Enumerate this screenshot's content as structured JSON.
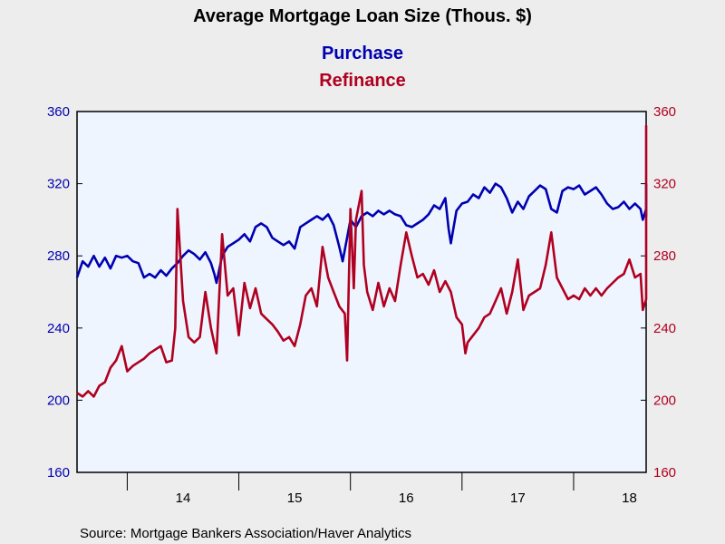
{
  "chart_data": {
    "type": "line",
    "title": "Average Mortgage Loan Size (Thous. $)",
    "source": "Source:  Mortgage Bankers Association/Haver Analytics",
    "y_left_range": [
      160,
      360
    ],
    "y_right_range": [
      160,
      360
    ],
    "y_ticks": [
      160,
      200,
      240,
      280,
      320,
      360
    ],
    "x_tick_labels": [
      "14",
      "15",
      "16",
      "17",
      "18"
    ],
    "x_range_years": [
      2013.55,
      2018.65
    ],
    "year_starts": [
      2014,
      2015,
      2016,
      2017,
      2018
    ],
    "grid": false,
    "legend_placement": "top-center",
    "colors": {
      "purchase": "#0000b0",
      "refinance": "#b00020",
      "plot_background": "#eef5ff",
      "page_background": "#ededed"
    },
    "series": [
      {
        "name": "Purchase",
        "axis": "left",
        "points": [
          [
            2013.55,
            268
          ],
          [
            2013.6,
            277
          ],
          [
            2013.65,
            274
          ],
          [
            2013.7,
            280
          ],
          [
            2013.75,
            274
          ],
          [
            2013.8,
            279
          ],
          [
            2013.85,
            273
          ],
          [
            2013.9,
            280
          ],
          [
            2013.95,
            279
          ],
          [
            2014.0,
            280
          ],
          [
            2014.05,
            277
          ],
          [
            2014.1,
            276
          ],
          [
            2014.15,
            268
          ],
          [
            2014.2,
            270
          ],
          [
            2014.25,
            268
          ],
          [
            2014.3,
            272
          ],
          [
            2014.35,
            269
          ],
          [
            2014.4,
            273
          ],
          [
            2014.45,
            276
          ],
          [
            2014.5,
            280
          ],
          [
            2014.55,
            283
          ],
          [
            2014.6,
            281
          ],
          [
            2014.65,
            278
          ],
          [
            2014.7,
            282
          ],
          [
            2014.75,
            276
          ],
          [
            2014.78,
            270
          ],
          [
            2014.8,
            265
          ],
          [
            2014.85,
            280
          ],
          [
            2014.9,
            285
          ],
          [
            2014.95,
            287
          ],
          [
            2015.0,
            289
          ],
          [
            2015.05,
            292
          ],
          [
            2015.1,
            288
          ],
          [
            2015.15,
            296
          ],
          [
            2015.2,
            298
          ],
          [
            2015.25,
            296
          ],
          [
            2015.3,
            290
          ],
          [
            2015.35,
            288
          ],
          [
            2015.4,
            286
          ],
          [
            2015.45,
            288
          ],
          [
            2015.5,
            284
          ],
          [
            2015.55,
            296
          ],
          [
            2015.6,
            298
          ],
          [
            2015.65,
            300
          ],
          [
            2015.7,
            302
          ],
          [
            2015.75,
            300
          ],
          [
            2015.8,
            303
          ],
          [
            2015.85,
            297
          ],
          [
            2015.9,
            285
          ],
          [
            2015.93,
            277
          ],
          [
            2015.97,
            290
          ],
          [
            2016.0,
            300
          ],
          [
            2016.05,
            296
          ],
          [
            2016.1,
            302
          ],
          [
            2016.15,
            304
          ],
          [
            2016.2,
            302
          ],
          [
            2016.25,
            305
          ],
          [
            2016.3,
            303
          ],
          [
            2016.35,
            305
          ],
          [
            2016.4,
            303
          ],
          [
            2016.45,
            302
          ],
          [
            2016.5,
            297
          ],
          [
            2016.55,
            296
          ],
          [
            2016.6,
            298
          ],
          [
            2016.65,
            300
          ],
          [
            2016.7,
            303
          ],
          [
            2016.75,
            308
          ],
          [
            2016.8,
            306
          ],
          [
            2016.85,
            312
          ],
          [
            2016.88,
            295
          ],
          [
            2016.9,
            287
          ],
          [
            2016.95,
            305
          ],
          [
            2017.0,
            309
          ],
          [
            2017.05,
            310
          ],
          [
            2017.1,
            314
          ],
          [
            2017.15,
            312
          ],
          [
            2017.2,
            318
          ],
          [
            2017.25,
            315
          ],
          [
            2017.3,
            320
          ],
          [
            2017.35,
            318
          ],
          [
            2017.4,
            312
          ],
          [
            2017.45,
            304
          ],
          [
            2017.5,
            310
          ],
          [
            2017.55,
            306
          ],
          [
            2017.6,
            313
          ],
          [
            2017.65,
            316
          ],
          [
            2017.7,
            319
          ],
          [
            2017.75,
            317
          ],
          [
            2017.8,
            306
          ],
          [
            2017.85,
            304
          ],
          [
            2017.9,
            316
          ],
          [
            2017.95,
            318
          ],
          [
            2018.0,
            317
          ],
          [
            2018.05,
            319
          ],
          [
            2018.1,
            314
          ],
          [
            2018.15,
            316
          ],
          [
            2018.2,
            318
          ],
          [
            2018.25,
            314
          ],
          [
            2018.3,
            309
          ],
          [
            2018.35,
            306
          ],
          [
            2018.4,
            307
          ],
          [
            2018.45,
            310
          ],
          [
            2018.5,
            306
          ],
          [
            2018.55,
            309
          ],
          [
            2018.6,
            306
          ],
          [
            2018.62,
            300
          ],
          [
            2018.65,
            306
          ],
          [
            2018.7,
            310
          ],
          [
            2018.72,
            302
          ],
          [
            2018.75,
            307
          ],
          [
            2018.8,
            315
          ],
          [
            2018.82,
            320
          ]
        ]
      },
      {
        "name": "Refinance",
        "axis": "right",
        "points": [
          [
            2013.55,
            204
          ],
          [
            2013.6,
            202
          ],
          [
            2013.65,
            205
          ],
          [
            2013.7,
            202
          ],
          [
            2013.75,
            208
          ],
          [
            2013.8,
            210
          ],
          [
            2013.85,
            218
          ],
          [
            2013.9,
            222
          ],
          [
            2013.95,
            230
          ],
          [
            2014.0,
            216
          ],
          [
            2014.05,
            219
          ],
          [
            2014.1,
            221
          ],
          [
            2014.15,
            223
          ],
          [
            2014.2,
            226
          ],
          [
            2014.25,
            228
          ],
          [
            2014.3,
            230
          ],
          [
            2014.35,
            221
          ],
          [
            2014.4,
            222
          ],
          [
            2014.43,
            240
          ],
          [
            2014.45,
            306
          ],
          [
            2014.5,
            255
          ],
          [
            2014.55,
            235
          ],
          [
            2014.6,
            232
          ],
          [
            2014.65,
            235
          ],
          [
            2014.7,
            260
          ],
          [
            2014.75,
            240
          ],
          [
            2014.8,
            226
          ],
          [
            2014.85,
            292
          ],
          [
            2014.9,
            258
          ],
          [
            2014.95,
            262
          ],
          [
            2015.0,
            236
          ],
          [
            2015.05,
            265
          ],
          [
            2015.1,
            251
          ],
          [
            2015.15,
            262
          ],
          [
            2015.2,
            248
          ],
          [
            2015.25,
            245
          ],
          [
            2015.3,
            242
          ],
          [
            2015.35,
            238
          ],
          [
            2015.4,
            233
          ],
          [
            2015.45,
            235
          ],
          [
            2015.5,
            230
          ],
          [
            2015.55,
            242
          ],
          [
            2015.6,
            258
          ],
          [
            2015.65,
            262
          ],
          [
            2015.7,
            252
          ],
          [
            2015.75,
            285
          ],
          [
            2015.8,
            268
          ],
          [
            2015.85,
            260
          ],
          [
            2015.9,
            252
          ],
          [
            2015.95,
            248
          ],
          [
            2015.97,
            222
          ],
          [
            2016.0,
            306
          ],
          [
            2016.03,
            262
          ],
          [
            2016.05,
            300
          ],
          [
            2016.1,
            316
          ],
          [
            2016.12,
            275
          ],
          [
            2016.15,
            260
          ],
          [
            2016.2,
            250
          ],
          [
            2016.25,
            265
          ],
          [
            2016.3,
            252
          ],
          [
            2016.35,
            262
          ],
          [
            2016.4,
            255
          ],
          [
            2016.45,
            275
          ],
          [
            2016.5,
            293
          ],
          [
            2016.55,
            280
          ],
          [
            2016.6,
            268
          ],
          [
            2016.65,
            270
          ],
          [
            2016.7,
            264
          ],
          [
            2016.75,
            272
          ],
          [
            2016.8,
            260
          ],
          [
            2016.85,
            266
          ],
          [
            2016.9,
            260
          ],
          [
            2016.95,
            246
          ],
          [
            2017.0,
            242
          ],
          [
            2017.03,
            226
          ],
          [
            2017.05,
            232
          ],
          [
            2017.1,
            236
          ],
          [
            2017.15,
            240
          ],
          [
            2017.2,
            246
          ],
          [
            2017.25,
            248
          ],
          [
            2017.3,
            255
          ],
          [
            2017.35,
            262
          ],
          [
            2017.4,
            248
          ],
          [
            2017.45,
            260
          ],
          [
            2017.5,
            278
          ],
          [
            2017.55,
            250
          ],
          [
            2017.6,
            258
          ],
          [
            2017.65,
            260
          ],
          [
            2017.7,
            262
          ],
          [
            2017.75,
            275
          ],
          [
            2017.8,
            293
          ],
          [
            2017.85,
            268
          ],
          [
            2017.9,
            262
          ],
          [
            2017.95,
            256
          ],
          [
            2018.0,
            258
          ],
          [
            2018.05,
            256
          ],
          [
            2018.1,
            262
          ],
          [
            2018.15,
            258
          ],
          [
            2018.2,
            262
          ],
          [
            2018.25,
            258
          ],
          [
            2018.3,
            262
          ],
          [
            2018.35,
            265
          ],
          [
            2018.4,
            268
          ],
          [
            2018.45,
            270
          ],
          [
            2018.5,
            278
          ],
          [
            2018.55,
            268
          ],
          [
            2018.6,
            270
          ],
          [
            2018.62,
            250
          ],
          [
            2018.65,
            256
          ],
          [
            2018.7,
            258
          ],
          [
            2018.75,
            262
          ],
          [
            2018.8,
            268
          ],
          [
            2018.85,
            262
          ],
          [
            2018.9,
            265
          ],
          [
            2018.95,
            262
          ],
          [
            2019.0,
            265
          ],
          [
            2019.05,
            280
          ],
          [
            2019.1,
            290
          ],
          [
            2019.15,
            312
          ],
          [
            2019.2,
            352
          ],
          [
            2019.25,
            320
          ],
          [
            2019.28,
            306
          ]
        ]
      }
    ]
  }
}
